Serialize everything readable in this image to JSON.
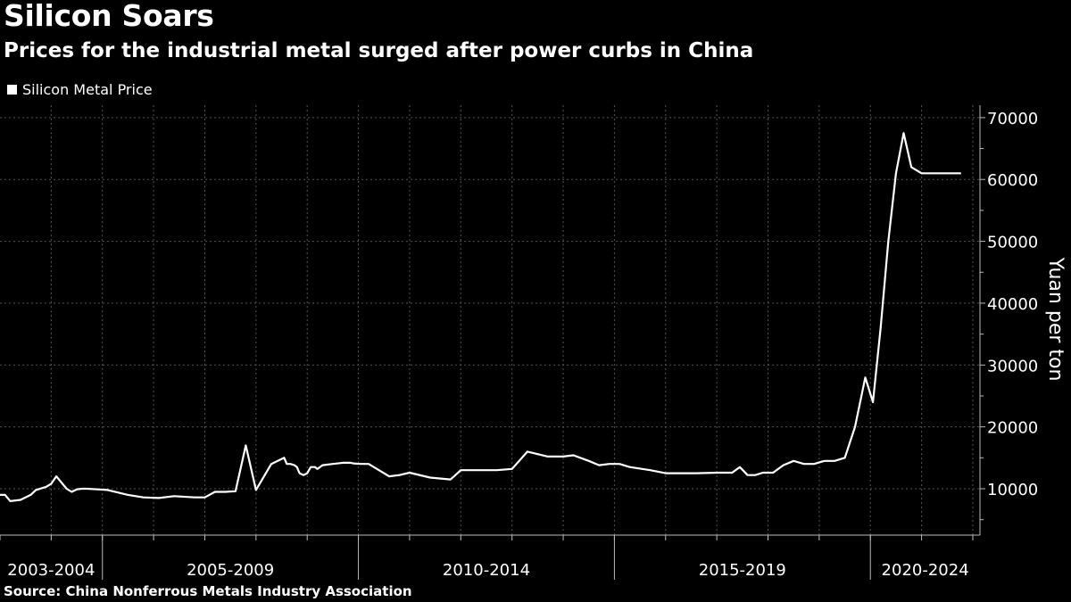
{
  "header": {
    "title": "Silicon Soars",
    "subtitle": "Prices for the industrial metal surged after power curbs in China"
  },
  "legend": {
    "label": "Silicon Metal Price",
    "color": "#ffffff"
  },
  "source": "Source: China Nonferrous Metals Industry Association",
  "colors": {
    "background": "#000000",
    "line": "#ffffff",
    "grid": "#555555",
    "text": "#ffffff"
  },
  "chart_data": {
    "type": "line",
    "title": "Silicon Soars",
    "subtitle": "Prices for the industrial metal surged after power curbs in China",
    "ylabel": "Yuan per ton",
    "xlabel": "",
    "ylim": [
      2500,
      72000
    ],
    "xlim": [
      2003.0,
      2022.14
    ],
    "yticks": [
      10000,
      20000,
      30000,
      40000,
      50000,
      60000,
      70000
    ],
    "ytick_labels": [
      "10000",
      "20000",
      "30000",
      "40000",
      "50000",
      "60000",
      "70000"
    ],
    "x_periods": [
      {
        "label": "2003-2004",
        "start": 2003.0,
        "end": 2005.0
      },
      {
        "label": "2005-2009",
        "start": 2005.0,
        "end": 2010.0
      },
      {
        "label": "2010-2014",
        "start": 2010.0,
        "end": 2015.0
      },
      {
        "label": "2015-2019",
        "start": 2015.0,
        "end": 2020.0
      },
      {
        "label": "2020-2024",
        "start": 2020.0,
        "end": 2022.14
      }
    ],
    "grid": true,
    "legend_position": "top-left",
    "series": [
      {
        "name": "Silicon Metal Price",
        "x": [
          2003.0,
          2003.1,
          2003.2,
          2003.4,
          2003.6,
          2003.7,
          2003.9,
          2004.0,
          2004.1,
          2004.3,
          2004.4,
          2004.5,
          2004.6,
          2004.7,
          2004.9,
          2005.1,
          2005.5,
          2005.8,
          2006.1,
          2006.4,
          2006.8,
          2007.0,
          2007.2,
          2007.4,
          2007.6,
          2007.8,
          2008.0,
          2008.3,
          2008.55,
          2008.6,
          2008.67,
          2008.75,
          2008.8,
          2008.85,
          2008.93,
          2009.0,
          2009.07,
          2009.15,
          2009.2,
          2009.25,
          2009.3,
          2009.5,
          2009.7,
          2009.85,
          2009.9,
          2010.05,
          2010.2,
          2010.6,
          2010.8,
          2011.0,
          2011.4,
          2011.8,
          2012.0,
          2012.3,
          2012.7,
          2013.0,
          2013.3,
          2013.7,
          2014.0,
          2014.2,
          2014.5,
          2014.7,
          2014.9,
          2015.1,
          2015.3,
          2015.7,
          2016.0,
          2016.2,
          2016.6,
          2017.0,
          2017.3,
          2017.45,
          2017.6,
          2017.75,
          2017.9,
          2018.1,
          2018.3,
          2018.5,
          2018.7,
          2018.9,
          2019.1,
          2019.3,
          2019.5,
          2019.7,
          2019.9,
          2020.05,
          2020.2,
          2020.35,
          2020.5,
          2020.65,
          2020.8,
          2021.0,
          2021.1,
          2021.2,
          2021.3,
          2021.35,
          2021.45,
          2021.55,
          2021.6,
          2021.64,
          2021.66,
          2021.68,
          2021.7,
          2021.71,
          2021.72,
          2021.73,
          2021.74,
          2021.75,
          2021.76,
          2021.77
        ],
        "values": [
          9000,
          9000,
          8000,
          8200,
          9000,
          9800,
          10300,
          10800,
          12000,
          10000,
          9500,
          9900,
          10000,
          10000,
          9900,
          9800,
          9000,
          8600,
          8500,
          8800,
          8600,
          8600,
          9500,
          9500,
          9600,
          17000,
          9800,
          14000,
          15000,
          14000,
          14000,
          13800,
          13500,
          12500,
          12200,
          12500,
          13500,
          13500,
          13200,
          13500,
          13800,
          14000,
          14200,
          14200,
          14100,
          14000,
          14000,
          12000,
          12200,
          12600,
          11800,
          11500,
          13000,
          13000,
          13000,
          13200,
          16000,
          15200,
          15200,
          15400,
          14500,
          13800,
          14000,
          14000,
          13500,
          13000,
          12500,
          12500,
          12500,
          12600,
          12600,
          13500,
          12200,
          12200,
          12600,
          12600,
          13800,
          14500,
          14000,
          14000,
          14500,
          14500,
          15000,
          20000,
          28000,
          24000,
          36000,
          50000,
          61000,
          67500,
          62000,
          61000,
          61000,
          61000,
          61000,
          61000,
          61000,
          61000,
          61000,
          61000,
          61000,
          61000,
          61000,
          61000,
          61000,
          61000,
          61000,
          61000,
          61000,
          61000
        ]
      }
    ]
  }
}
